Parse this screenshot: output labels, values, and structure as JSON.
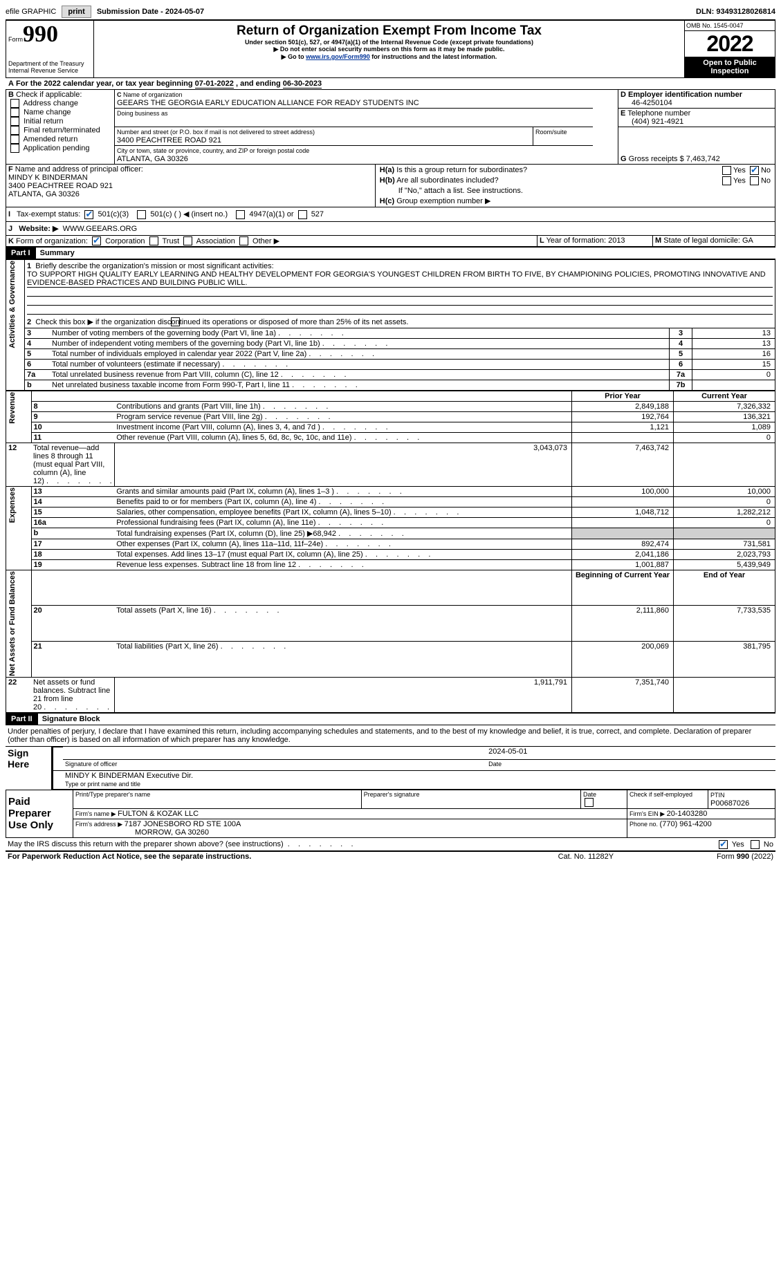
{
  "topbar": {
    "efile": "efile GRAPHIC",
    "print": "print",
    "subdate_label": "Submission Date - ",
    "subdate": "2024-05-07",
    "dln_label": "DLN: ",
    "dln": "93493128026814"
  },
  "header": {
    "form_word": "Form",
    "form_num": "990",
    "dept": "Department of the Treasury",
    "irs": "Internal Revenue Service",
    "title": "Return of Organization Exempt From Income Tax",
    "subtitle": "Under section 501(c), 527, or 4947(a)(1) of the Internal Revenue Code (except private foundations)",
    "warn1": "Do not enter social security numbers on this form as it may be made public.",
    "warn2_pre": "Go to ",
    "warn2_link": "www.irs.gov/Form990",
    "warn2_post": " for instructions and the latest information.",
    "omb": "OMB No. 1545-0047",
    "year": "2022",
    "open": "Open to Public Inspection"
  },
  "A": {
    "text": "For the 2022 calendar year, or tax year beginning ",
    "begin": "07-01-2022",
    "mid": "  , and ending ",
    "end": "06-30-2023"
  },
  "B": {
    "label": "Check if applicable:",
    "items": [
      "Address change",
      "Name change",
      "Initial return",
      "Final return/terminated",
      "Amended return",
      "Application pending"
    ]
  },
  "C": {
    "name_label": "Name of organization",
    "name": "GEEARS THE GEORGIA EARLY EDUCATION ALLIANCE FOR READY STUDENTS INC",
    "dba_label": "Doing business as",
    "street_label": "Number and street (or P.O. box if mail is not delivered to street address)",
    "room_label": "Room/suite",
    "street": "3400 PEACHTREE ROAD 921",
    "city_label": "City or town, state or province, country, and ZIP or foreign postal code",
    "city": "ATLANTA, GA  30326"
  },
  "D": {
    "label": "Employer identification number",
    "val": "46-4250104"
  },
  "E": {
    "label": "Telephone number",
    "val": "(404) 921-4921"
  },
  "G": {
    "label": "Gross receipts $ ",
    "val": "7,463,742"
  },
  "F": {
    "label": "Name and address of principal officer:",
    "name": "MINDY K BINDERMAN",
    "addr1": "3400 PEACHTREE ROAD 921",
    "addr2": "ATLANTA, GA  30326"
  },
  "H": {
    "a": "Is this a group return for subordinates?",
    "b": "Are all subordinates included?",
    "note": "If \"No,\" attach a list. See instructions.",
    "c": "Group exemption number ▶",
    "yes": "Yes",
    "no": "No"
  },
  "I": {
    "label": "Tax-exempt status:",
    "o1": "501(c)(3)",
    "o2": "501(c) (  ) ◀ (insert no.)",
    "o3": "4947(a)(1) or",
    "o4": "527"
  },
  "J": {
    "label": "Website: ▶",
    "val": "WWW.GEEARS.ORG"
  },
  "K": {
    "label": "Form of organization:",
    "o1": "Corporation",
    "o2": "Trust",
    "o3": "Association",
    "o4": "Other ▶"
  },
  "L": {
    "label": "Year of formation: ",
    "val": "2013"
  },
  "M": {
    "label": "State of legal domicile: ",
    "val": "GA"
  },
  "part1": {
    "label": "Part I",
    "title": "Summary",
    "side_label1": "Activities & Governance",
    "side_label2": "Revenue",
    "side_label3": "Expenses",
    "side_label4": "Net Assets or Fund Balances",
    "q1": "Briefly describe the organization's mission or most significant activities:",
    "mission": "TO SUPPORT HIGH QUALITY EARLY LEARNING AND HEALTHY DEVELOPMENT FOR GEORGIA'S YOUNGEST CHILDREN FROM BIRTH TO FIVE, BY CHAMPIONING POLICIES, PROMOTING INNOVATIVE AND EVIDENCE-BASED PRACTICES AND BUILDING PUBLIC WILL.",
    "q2": "Check this box ▶         if the organization discontinued its operations or disposed of more than 25% of its net assets.",
    "lines_gov": [
      {
        "n": "3",
        "t": "Number of voting members of the governing body (Part VI, line 1a)",
        "box": "3",
        "v": "13"
      },
      {
        "n": "4",
        "t": "Number of independent voting members of the governing body (Part VI, line 1b)",
        "box": "4",
        "v": "13"
      },
      {
        "n": "5",
        "t": "Total number of individuals employed in calendar year 2022 (Part V, line 2a)",
        "box": "5",
        "v": "16"
      },
      {
        "n": "6",
        "t": "Total number of volunteers (estimate if necessary)",
        "box": "6",
        "v": "15"
      },
      {
        "n": "7a",
        "t": "Total unrelated business revenue from Part VIII, column (C), line 12",
        "box": "7a",
        "v": "0"
      },
      {
        "n": "b",
        "t": "Net unrelated business taxable income from Form 990-T, Part I, line 11",
        "box": "7b",
        "v": ""
      }
    ],
    "prior_year": "Prior Year",
    "current_year": "Current Year",
    "rev": [
      {
        "n": "8",
        "t": "Contributions and grants (Part VIII, line 1h)",
        "p": "2,849,188",
        "c": "7,326,332"
      },
      {
        "n": "9",
        "t": "Program service revenue (Part VIII, line 2g)",
        "p": "192,764",
        "c": "136,321"
      },
      {
        "n": "10",
        "t": "Investment income (Part VIII, column (A), lines 3, 4, and 7d )",
        "p": "1,121",
        "c": "1,089"
      },
      {
        "n": "11",
        "t": "Other revenue (Part VIII, column (A), lines 5, 6d, 8c, 9c, 10c, and 11e)",
        "p": "",
        "c": "0"
      },
      {
        "n": "12",
        "t": "Total revenue—add lines 8 through 11 (must equal Part VIII, column (A), line 12)",
        "p": "3,043,073",
        "c": "7,463,742"
      }
    ],
    "exp": [
      {
        "n": "13",
        "t": "Grants and similar amounts paid (Part IX, column (A), lines 1–3 )",
        "p": "100,000",
        "c": "10,000"
      },
      {
        "n": "14",
        "t": "Benefits paid to or for members (Part IX, column (A), line 4)",
        "p": "",
        "c": "0"
      },
      {
        "n": "15",
        "t": "Salaries, other compensation, employee benefits (Part IX, column (A), lines 5–10)",
        "p": "1,048,712",
        "c": "1,282,212"
      },
      {
        "n": "16a",
        "t": "Professional fundraising fees (Part IX, column (A), line 11e)",
        "p": "",
        "c": "0"
      },
      {
        "n": "b",
        "t": "Total fundraising expenses (Part IX, column (D), line 25) ▶68,942",
        "p": "GRAY",
        "c": "GRAY"
      },
      {
        "n": "17",
        "t": "Other expenses (Part IX, column (A), lines 11a–11d, 11f–24e)",
        "p": "892,474",
        "c": "731,581"
      },
      {
        "n": "18",
        "t": "Total expenses. Add lines 13–17 (must equal Part IX, column (A), line 25)",
        "p": "2,041,186",
        "c": "2,023,793"
      },
      {
        "n": "19",
        "t": "Revenue less expenses. Subtract line 18 from line 12",
        "p": "1,001,887",
        "c": "5,439,949"
      }
    ],
    "boy": "Beginning of Current Year",
    "eoy": "End of Year",
    "net": [
      {
        "n": "20",
        "t": "Total assets (Part X, line 16)",
        "p": "2,111,860",
        "c": "7,733,535"
      },
      {
        "n": "21",
        "t": "Total liabilities (Part X, line 26)",
        "p": "200,069",
        "c": "381,795"
      },
      {
        "n": "22",
        "t": "Net assets or fund balances. Subtract line 21 from line 20",
        "p": "1,911,791",
        "c": "7,351,740"
      }
    ]
  },
  "part2": {
    "label": "Part II",
    "title": "Signature Block",
    "decl": "Under penalties of perjury, I declare that I have examined this return, including accompanying schedules and statements, and to the best of my knowledge and belief, it is true, correct, and complete. Declaration of preparer (other than officer) is based on all information of which preparer has any knowledge.",
    "sign_here": "Sign Here",
    "sig_officer": "Signature of officer",
    "sig_date": "2024-05-01",
    "date": "Date",
    "officer_name": "MINDY K BINDERMAN  Executive Dir.",
    "type_name": "Type or print name and title",
    "paid": "Paid Preparer Use Only",
    "prep_name_label": "Print/Type preparer's name",
    "prep_sig_label": "Preparer's signature",
    "prep_date_label": "Date",
    "self_emp": "Check          if self-employed",
    "ptin_label": "PTIN",
    "ptin": "P00687026",
    "firm_name_label": "Firm's name    ▶ ",
    "firm_name": "FULTON & KOZAK LLC",
    "firm_ein_label": "Firm's EIN ▶ ",
    "firm_ein": "20-1403280",
    "firm_addr_label": "Firm's address ▶ ",
    "firm_addr1": "7187 JONESBORO RD STE 100A",
    "firm_addr2": "MORROW, GA  30260",
    "phone_label": "Phone no. ",
    "phone": "(770) 961-4200",
    "may_irs": "May the IRS discuss this return with the preparer shown above? (see instructions)"
  },
  "footer": {
    "left": "For Paperwork Reduction Act Notice, see the separate instructions.",
    "mid": "Cat. No. 11282Y",
    "right": "Form 990 (2022)"
  }
}
